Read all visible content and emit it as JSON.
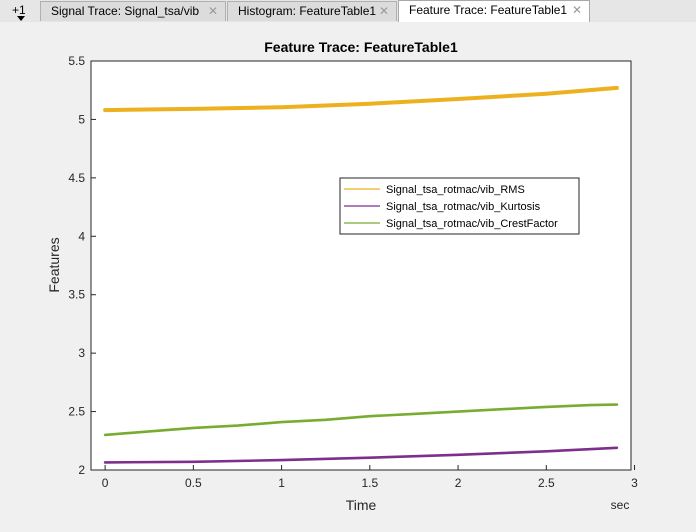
{
  "tabs": {
    "overflow_label": "+1",
    "items": [
      {
        "label": "Signal Trace: Signal_tsa/vib",
        "active": false
      },
      {
        "label": "Histogram: FeatureTable1",
        "active": false
      },
      {
        "label": "Feature Trace: FeatureTable1",
        "active": true
      }
    ],
    "close_glyph": "✕"
  },
  "chart_data": {
    "type": "line",
    "title": "Feature Trace: FeatureTable1",
    "xlabel": "Time",
    "ylabel": "Features",
    "x_unit": "sec",
    "xlim": [
      -0.08,
      2.98
    ],
    "ylim": [
      2,
      5.5
    ],
    "x_ticks": [
      "0",
      "0.5",
      "1",
      "1.5",
      "2",
      "2.5",
      "3"
    ],
    "y_ticks": [
      "2",
      "2.5",
      "3",
      "3.5",
      "4",
      "4.5",
      "5",
      "5.5"
    ],
    "grid": false,
    "legend_position": "center-right",
    "series": [
      {
        "name": "Signal_tsa_rotmac/vib_RMS",
        "color": "#EDB120",
        "x": [
          0,
          0.5,
          1,
          1.5,
          2,
          2.5,
          2.9
        ],
        "y": [
          5.08,
          5.09,
          5.105,
          5.135,
          5.175,
          5.22,
          5.27
        ]
      },
      {
        "name": "Signal_tsa_rotmac/vib_Kurtosis",
        "color": "#7E2F8E",
        "x": [
          0,
          0.5,
          1,
          1.5,
          2,
          2.5,
          2.9
        ],
        "y": [
          2.065,
          2.07,
          2.085,
          2.105,
          2.13,
          2.16,
          2.19
        ]
      },
      {
        "name": "Signal_tsa_rotmac/vib_CrestFactor",
        "color": "#77AC30",
        "x": [
          0,
          0.25,
          0.5,
          0.75,
          1,
          1.25,
          1.5,
          1.75,
          2,
          2.25,
          2.5,
          2.75,
          2.9
        ],
        "y": [
          2.3,
          2.33,
          2.36,
          2.38,
          2.41,
          2.43,
          2.46,
          2.48,
          2.5,
          2.52,
          2.54,
          2.555,
          2.56
        ]
      }
    ]
  }
}
